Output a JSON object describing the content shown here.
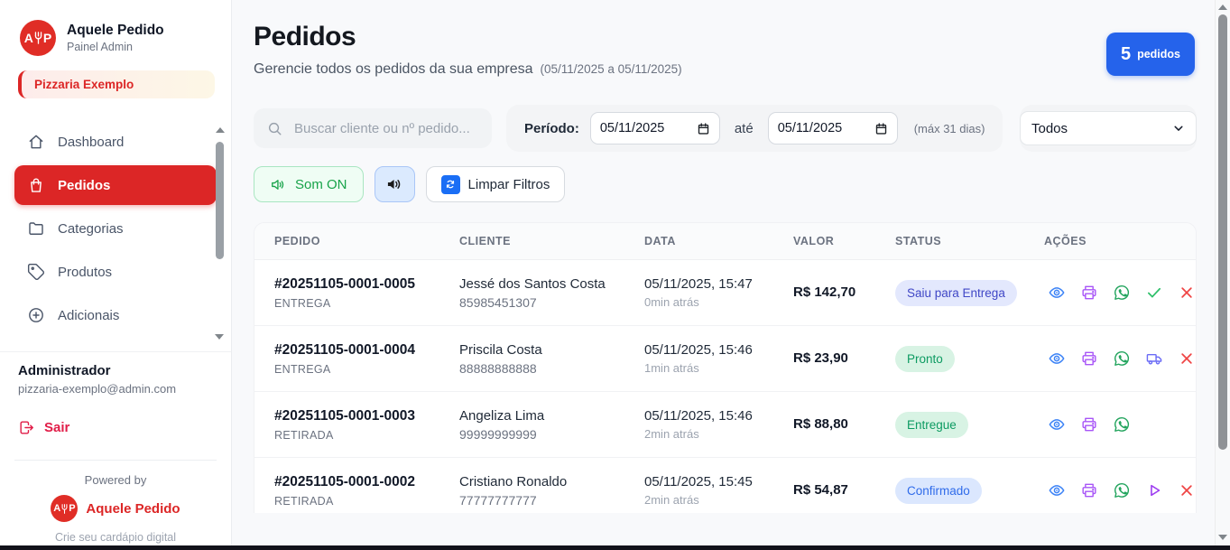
{
  "sidebar": {
    "brand": {
      "name": "Aquele Pedido",
      "subtitle": "Painel Admin",
      "logo_letters": [
        "A",
        "P"
      ]
    },
    "company_badge": "Pizzaria Exemplo",
    "nav": [
      {
        "label": "Dashboard",
        "icon": "home",
        "active": false
      },
      {
        "label": "Pedidos",
        "icon": "bag",
        "active": true
      },
      {
        "label": "Categorias",
        "icon": "folder",
        "active": false
      },
      {
        "label": "Produtos",
        "icon": "tag",
        "active": false
      },
      {
        "label": "Adicionais",
        "icon": "plus-circle",
        "active": false
      }
    ],
    "user": {
      "role": "Administrador",
      "email": "pizzaria-exemplo@admin.com",
      "logout": "Sair"
    },
    "footer": {
      "powered_by": "Powered by",
      "brand": "Aquele Pedido",
      "tagline": "Crie seu cardápio digital"
    }
  },
  "header": {
    "title": "Pedidos",
    "subtitle": "Gerencie todos os pedidos da sua empresa",
    "date_range": "(05/11/2025 a 05/11/2025)",
    "count": "5",
    "count_label": "pedidos"
  },
  "filters": {
    "search_placeholder": "Buscar cliente ou nº pedido...",
    "period_label": "Período:",
    "date_from": "05/11/2025",
    "until": "até",
    "date_to": "05/11/2025",
    "max_note": "(máx 31 dias)",
    "status_selected": "Todos",
    "sound_on": "Som ON",
    "clear": "Limpar Filtros"
  },
  "table": {
    "headers": [
      "PEDIDO",
      "CLIENTE",
      "DATA",
      "VALOR",
      "STATUS",
      "AÇÕES"
    ],
    "rows": [
      {
        "id": "#20251105-0001-0005",
        "type": "ENTREGA",
        "client": "Jessé dos Santos Costa",
        "phone": "85985451307",
        "datetime": "05/11/2025, 15:47",
        "ago": "0min atrás",
        "value": "R$ 142,70",
        "status": "Saiu para Entrega",
        "status_style": "indigo",
        "actions": [
          "view",
          "print",
          "whatsapp",
          "check",
          "cancel"
        ]
      },
      {
        "id": "#20251105-0001-0004",
        "type": "ENTREGA",
        "client": "Priscila Costa",
        "phone": "88888888888",
        "datetime": "05/11/2025, 15:46",
        "ago": "1min atrás",
        "value": "R$ 23,90",
        "status": "Pronto",
        "status_style": "green",
        "actions": [
          "view",
          "print",
          "whatsapp",
          "truck",
          "cancel"
        ]
      },
      {
        "id": "#20251105-0001-0003",
        "type": "RETIRADA",
        "client": "Angeliza Lima",
        "phone": "99999999999",
        "datetime": "05/11/2025, 15:46",
        "ago": "2min atrás",
        "value": "R$ 88,80",
        "status": "Entregue",
        "status_style": "green",
        "actions": [
          "view",
          "print",
          "whatsapp"
        ]
      },
      {
        "id": "#20251105-0001-0002",
        "type": "RETIRADA",
        "client": "Cristiano Ronaldo",
        "phone": "77777777777",
        "datetime": "05/11/2025, 15:45",
        "ago": "2min atrás",
        "value": "R$ 54,87",
        "status": "Confirmado",
        "status_style": "blue",
        "actions": [
          "view",
          "print",
          "whatsapp",
          "play",
          "cancel"
        ]
      }
    ]
  },
  "colors": {
    "accent_red": "#dc2626",
    "accent_blue": "#2563eb",
    "badge_indigo_bg": "#e3e8fd",
    "badge_green_bg": "#d8f3e4",
    "badge_blue_bg": "#dbe7fe",
    "status_green_text": "#0d9b62",
    "status_indigo_text": "#4047c6",
    "status_blue_text": "#2f6bea"
  }
}
